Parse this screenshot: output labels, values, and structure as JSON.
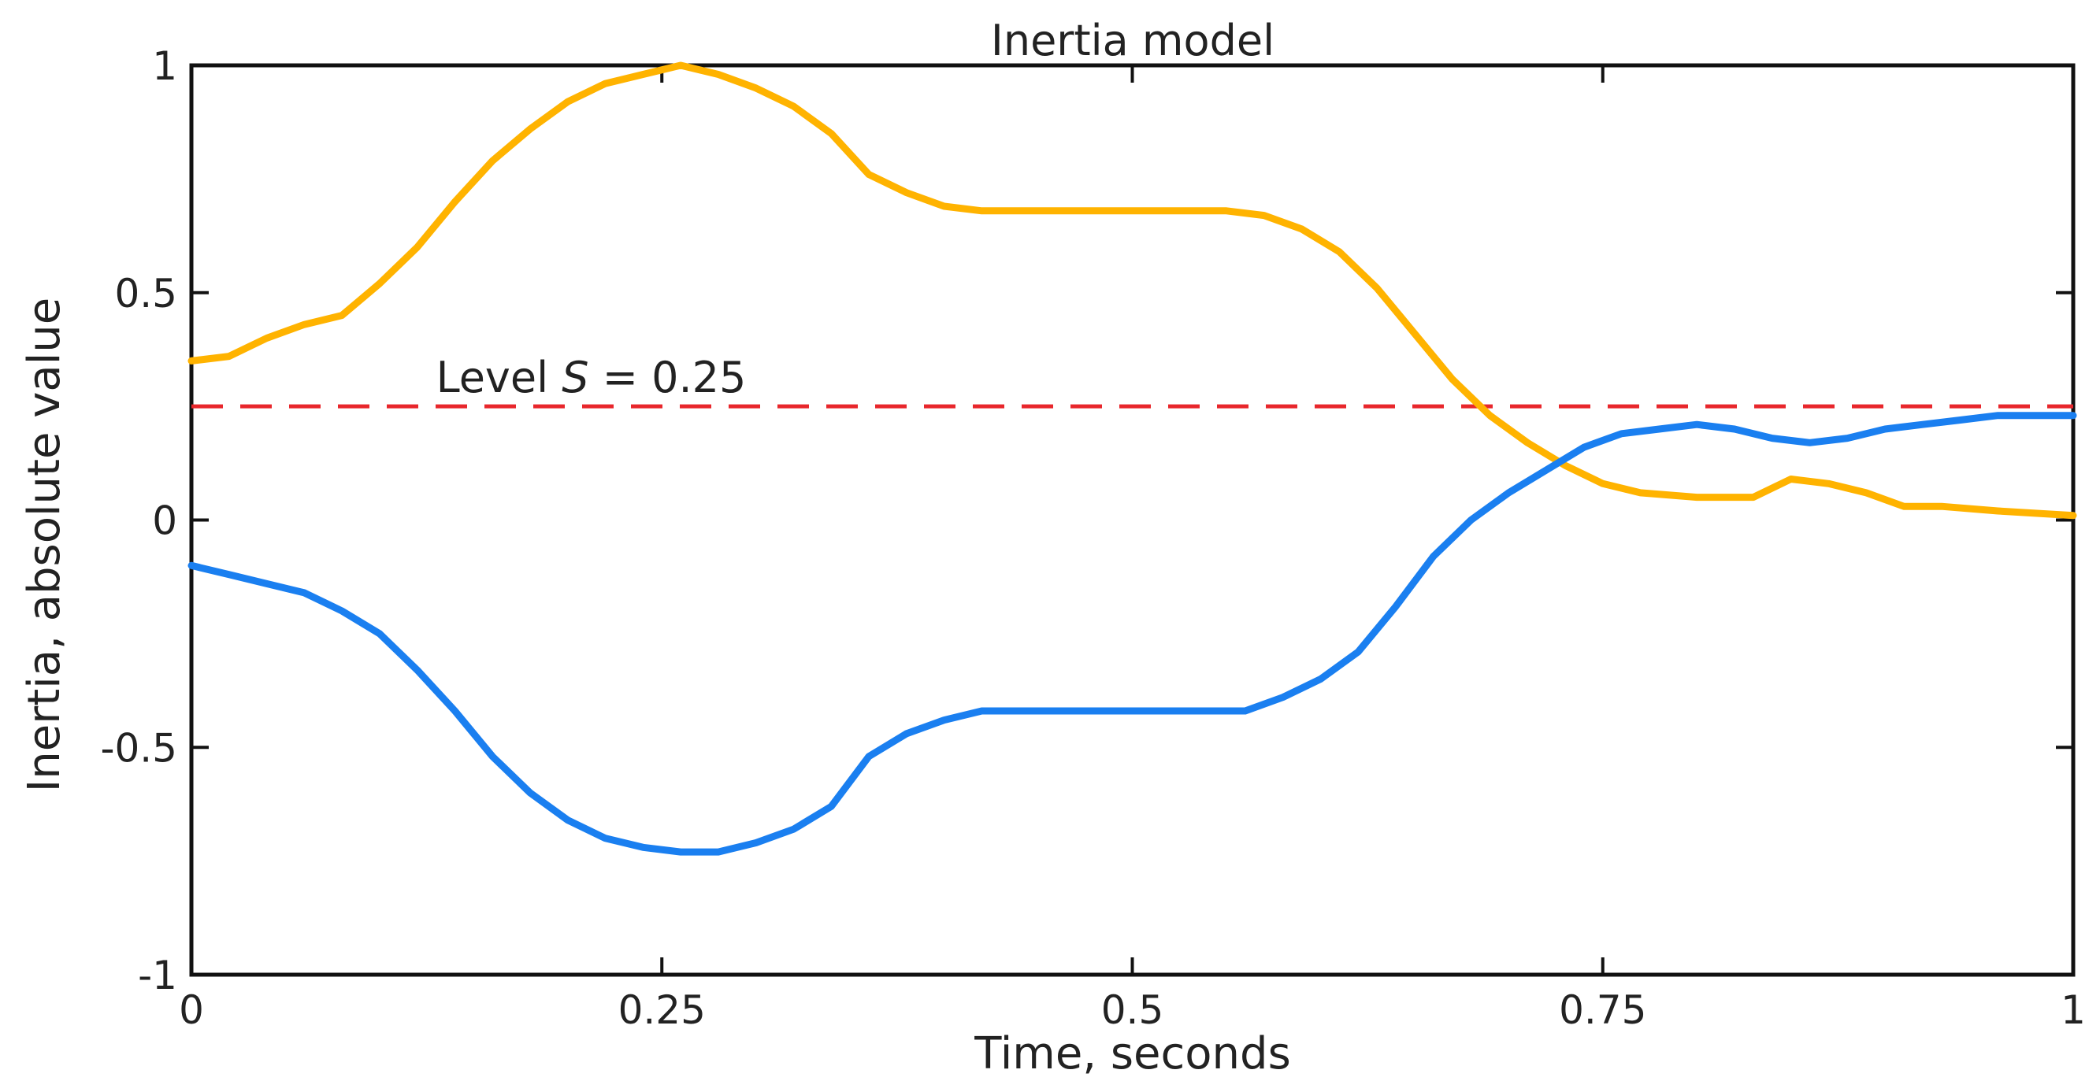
{
  "chart_data": {
    "type": "line",
    "title": "Inertia model",
    "xlabel": "Time, seconds",
    "ylabel": "Inertia, absolute value",
    "xlim": [
      0,
      1
    ],
    "ylim": [
      -1,
      1
    ],
    "x_ticks": [
      {
        "value": 0,
        "label": "0"
      },
      {
        "value": 0.25,
        "label": "0.25"
      },
      {
        "value": 0.5,
        "label": "0.5"
      },
      {
        "value": 0.75,
        "label": "0.75"
      },
      {
        "value": 1,
        "label": "1"
      }
    ],
    "y_ticks": [
      {
        "value": 1,
        "label": "1"
      },
      {
        "value": 0.5,
        "label": "0.5"
      },
      {
        "value": 0,
        "label": "0"
      },
      {
        "value": -0.5,
        "label": "-0.5"
      },
      {
        "value": -1,
        "label": "-1"
      }
    ],
    "grid": false,
    "series": [
      {
        "color": "#FFB300",
        "points": [
          [
            0.0,
            0.35
          ],
          [
            0.02,
            0.36
          ],
          [
            0.04,
            0.4
          ],
          [
            0.06,
            0.43
          ],
          [
            0.08,
            0.45
          ],
          [
            0.1,
            0.52
          ],
          [
            0.12,
            0.6
          ],
          [
            0.14,
            0.7
          ],
          [
            0.16,
            0.79
          ],
          [
            0.18,
            0.86
          ],
          [
            0.2,
            0.92
          ],
          [
            0.22,
            0.96
          ],
          [
            0.24,
            0.98
          ],
          [
            0.26,
            1.0
          ],
          [
            0.28,
            0.98
          ],
          [
            0.3,
            0.95
          ],
          [
            0.32,
            0.91
          ],
          [
            0.34,
            0.85
          ],
          [
            0.36,
            0.76
          ],
          [
            0.38,
            0.72
          ],
          [
            0.4,
            0.69
          ],
          [
            0.42,
            0.68
          ],
          [
            0.45,
            0.68
          ],
          [
            0.5,
            0.68
          ],
          [
            0.55,
            0.68
          ],
          [
            0.57,
            0.67
          ],
          [
            0.59,
            0.64
          ],
          [
            0.61,
            0.59
          ],
          [
            0.63,
            0.51
          ],
          [
            0.65,
            0.41
          ],
          [
            0.67,
            0.31
          ],
          [
            0.69,
            0.23
          ],
          [
            0.71,
            0.17
          ],
          [
            0.73,
            0.12
          ],
          [
            0.75,
            0.08
          ],
          [
            0.77,
            0.06
          ],
          [
            0.8,
            0.05
          ],
          [
            0.83,
            0.05
          ],
          [
            0.85,
            0.09
          ],
          [
            0.87,
            0.08
          ],
          [
            0.89,
            0.06
          ],
          [
            0.91,
            0.03
          ],
          [
            0.93,
            0.03
          ],
          [
            0.96,
            0.02
          ],
          [
            1.0,
            0.01
          ]
        ]
      },
      {
        "color": "#1A7FF0",
        "points": [
          [
            0.0,
            -0.1
          ],
          [
            0.02,
            -0.12
          ],
          [
            0.04,
            -0.14
          ],
          [
            0.06,
            -0.16
          ],
          [
            0.08,
            -0.2
          ],
          [
            0.1,
            -0.25
          ],
          [
            0.12,
            -0.33
          ],
          [
            0.14,
            -0.42
          ],
          [
            0.16,
            -0.52
          ],
          [
            0.18,
            -0.6
          ],
          [
            0.2,
            -0.66
          ],
          [
            0.22,
            -0.7
          ],
          [
            0.24,
            -0.72
          ],
          [
            0.26,
            -0.73
          ],
          [
            0.28,
            -0.73
          ],
          [
            0.3,
            -0.71
          ],
          [
            0.32,
            -0.68
          ],
          [
            0.34,
            -0.63
          ],
          [
            0.36,
            -0.52
          ],
          [
            0.38,
            -0.47
          ],
          [
            0.4,
            -0.44
          ],
          [
            0.42,
            -0.42
          ],
          [
            0.45,
            -0.42
          ],
          [
            0.5,
            -0.42
          ],
          [
            0.56,
            -0.42
          ],
          [
            0.58,
            -0.39
          ],
          [
            0.6,
            -0.35
          ],
          [
            0.62,
            -0.29
          ],
          [
            0.64,
            -0.19
          ],
          [
            0.66,
            -0.08
          ],
          [
            0.68,
            0.0
          ],
          [
            0.7,
            0.06
          ],
          [
            0.72,
            0.11
          ],
          [
            0.74,
            0.16
          ],
          [
            0.76,
            0.19
          ],
          [
            0.78,
            0.2
          ],
          [
            0.8,
            0.21
          ],
          [
            0.82,
            0.2
          ],
          [
            0.84,
            0.18
          ],
          [
            0.86,
            0.17
          ],
          [
            0.88,
            0.18
          ],
          [
            0.9,
            0.2
          ],
          [
            0.92,
            0.21
          ],
          [
            0.94,
            0.22
          ],
          [
            0.96,
            0.23
          ],
          [
            0.98,
            0.23
          ],
          [
            1.0,
            0.23
          ]
        ]
      }
    ],
    "reference_line": {
      "y": 0.25,
      "color": "#E8262B",
      "style": "dashed",
      "label_prefix": "Level ",
      "label_symbol": "S",
      "label_suffix": " = 0.25"
    }
  }
}
